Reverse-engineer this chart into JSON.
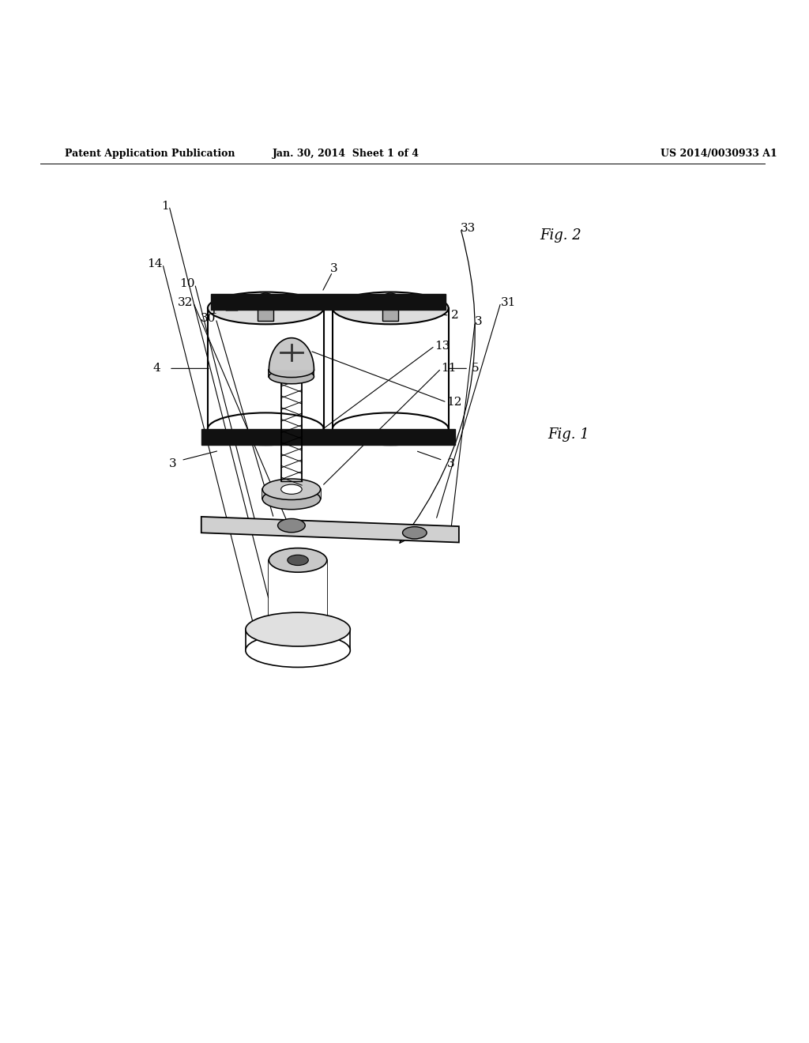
{
  "bg_color": "#ffffff",
  "header_left": "Patent Application Publication",
  "header_mid": "Jan. 30, 2014  Sheet 1 of 4",
  "header_right": "US 2014/0030933 A1",
  "fig1_label": "Fig. 1",
  "fig2_label": "Fig. 2"
}
